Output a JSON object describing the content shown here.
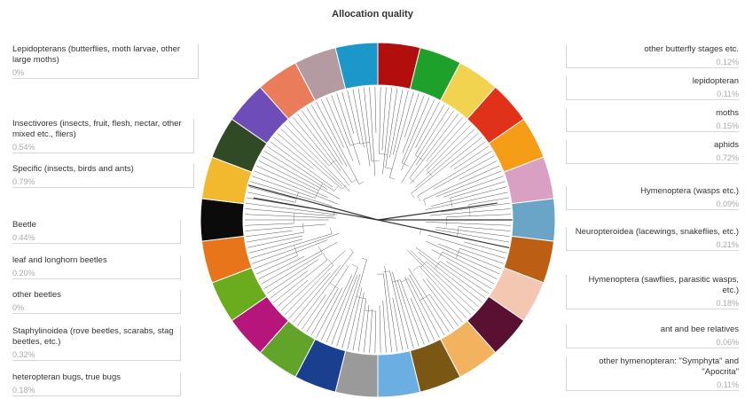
{
  "title": "Allocation quality",
  "labels_left": [
    {
      "text": "Lepidopterans (butterflies, moth larvae, other large moths)",
      "value": "0%"
    },
    {
      "text": "Insectivores (insects, fruit, flesh, nectar, other mixed etc., fliers)",
      "value": "0.54%"
    },
    {
      "text": "Specific (insects, birds and ants)",
      "value": "0.79%"
    },
    {
      "text": "Beetle",
      "value": "0.44%"
    },
    {
      "text": "leaf and longhorn beetles",
      "value": "0.20%"
    },
    {
      "text": "other beetles",
      "value": "0%"
    },
    {
      "text": "Staphylinoidea (rove beetles, scarabs, stag beetles, etc.)",
      "value": "0.32%"
    },
    {
      "text": "heteropteran bugs, true bugs",
      "value": "0.18%"
    }
  ],
  "labels_right": [
    {
      "text": "other butterfly stages etc.",
      "value": "0.12%"
    },
    {
      "text": "lepidopteran",
      "value": "0.11%"
    },
    {
      "text": "moths",
      "value": "0.15%"
    },
    {
      "text": "aphids",
      "value": "0.72%"
    },
    {
      "text": "Hymenoptera (wasps etc.)",
      "value": "0.09%"
    },
    {
      "text": "Neuropteroidea (lacewings, snakeflies, etc.)",
      "value": "0.21%"
    },
    {
      "text": "Hymenoptera (sawflies, parasitic wasps, etc.)",
      "value": "0.18%"
    },
    {
      "text": "ant and bee relatives",
      "value": "0.06%"
    },
    {
      "text": "other hymenopteran: \"Symphyta\" and \"Apocrita\"",
      "value": "0.11%"
    }
  ],
  "ring_colors": [
    "#b30e0e",
    "#1ea12a",
    "#f2d34f",
    "#e0311b",
    "#f59d16",
    "#d9a0c4",
    "#6aa5c8",
    "#bd5e15",
    "#f4c7b2",
    "#5a1030",
    "#f2b25e",
    "#7a5712",
    "#6aaee2",
    "#9a9a9a",
    "#1a3f8f",
    "#62a32a",
    "#b6157c",
    "#6aac1e",
    "#e8751a",
    "#0b0b0b",
    "#f3b92e",
    "#2f4a24",
    "#6e4db8",
    "#ea7c5b",
    "#b49aa1",
    "#1b97c9"
  ]
}
